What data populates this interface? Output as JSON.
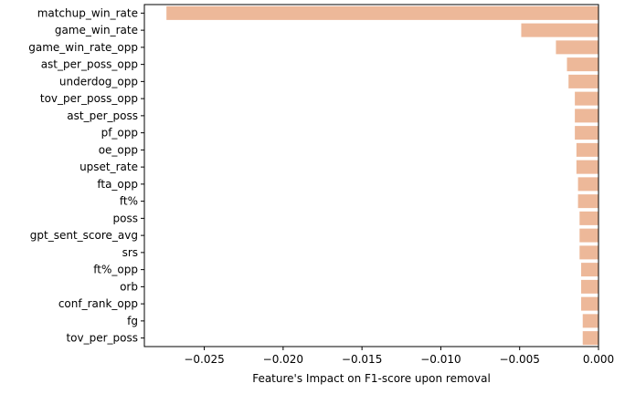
{
  "chart_data": {
    "type": "bar",
    "orientation": "horizontal",
    "categories": [
      "matchup_win_rate",
      "game_win_rate",
      "game_win_rate_opp",
      "ast_per_poss_opp",
      "underdog_opp",
      "tov_per_poss_opp",
      "ast_per_poss",
      "pf_opp",
      "oe_opp",
      "upset_rate",
      "fta_opp",
      "ft%",
      "poss",
      "gpt_sent_score_avg",
      "srs",
      "ft%_opp",
      "orb",
      "conf_rank_opp",
      "fg",
      "tov_per_poss"
    ],
    "values": [
      -0.0274,
      -0.0049,
      -0.0027,
      -0.002,
      -0.0019,
      -0.0015,
      -0.0015,
      -0.0015,
      -0.0014,
      -0.0014,
      -0.0013,
      -0.0013,
      -0.0012,
      -0.0012,
      -0.0012,
      -0.0011,
      -0.0011,
      -0.0011,
      -0.001,
      -0.001
    ],
    "xlabel": "Feature's Impact on F1-score upon removal",
    "ylabel": "",
    "xlim": [
      -0.0288,
      0.0
    ],
    "xticks": [
      -0.025,
      -0.02,
      -0.015,
      -0.01,
      -0.005,
      0.0
    ],
    "xtick_labels": [
      "−0.025",
      "−0.020",
      "−0.015",
      "−0.010",
      "−0.005",
      "0.000"
    ],
    "bar_color": "#EDB899",
    "grid": false,
    "legend": "none"
  }
}
